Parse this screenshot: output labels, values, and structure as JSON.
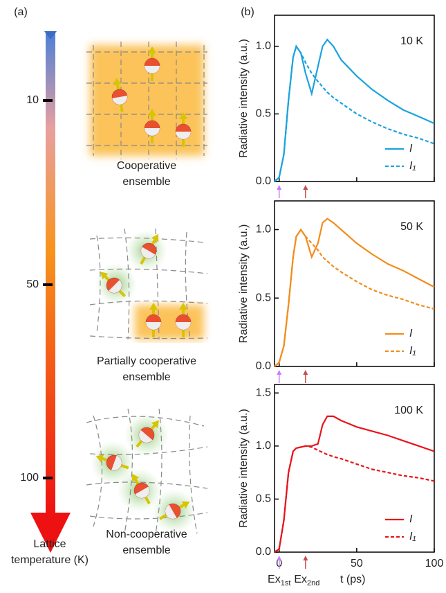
{
  "panel_a": {
    "label": "(a)",
    "ticks": [
      "10",
      "50",
      "100"
    ],
    "axis_label": [
      "Lattice",
      "temperature (K)"
    ],
    "captions": [
      [
        "Cooperative",
        "ensemble"
      ],
      [
        "Partially cooperative",
        "ensemble"
      ],
      [
        "Non-cooperative",
        "ensemble"
      ]
    ]
  },
  "panel_b_label": "(b)",
  "chart_data": [
    {
      "type": "line",
      "annotation": "10 K",
      "ylabel": "Radiative intensity (a.u.)",
      "x": [
        -3,
        0,
        3,
        6,
        9,
        11,
        14,
        17,
        21,
        25,
        28,
        31,
        35,
        40,
        50,
        60,
        70,
        80,
        90,
        100
      ],
      "series": [
        {
          "name": "I",
          "color": "#1aa3dd",
          "dash": false,
          "values": [
            0,
            0.03,
            0.2,
            0.6,
            0.92,
            1.0,
            0.95,
            0.8,
            0.65,
            0.85,
            1.0,
            1.05,
            1.0,
            0.9,
            0.78,
            0.68,
            0.6,
            0.53,
            0.48,
            0.43
          ]
        },
        {
          "name": "I₁",
          "color": "#1aa3dd",
          "dash": true,
          "values": [
            0,
            0.03,
            0.2,
            0.6,
            0.92,
            1.0,
            0.95,
            0.88,
            0.8,
            0.74,
            0.7,
            0.66,
            0.62,
            0.58,
            0.5,
            0.44,
            0.39,
            0.35,
            0.32,
            0.28
          ]
        }
      ],
      "xlim": [
        -3,
        100
      ],
      "xticks": [
        0,
        50,
        100
      ],
      "ylim": [
        0,
        1.23
      ],
      "yticks": [
        {
          "value": 0,
          "label": "0.0"
        },
        {
          "value": 0.5,
          "label": "0.5"
        },
        {
          "value": 1,
          "label": "1.0"
        }
      ],
      "excitations": [
        0,
        17
      ],
      "excitation_colors": [
        "#c77dff",
        "#c0504d"
      ]
    },
    {
      "type": "line",
      "annotation": "50 K",
      "ylabel": "Radiative intensity (a.u.)",
      "x": [
        -3,
        0,
        3,
        6,
        9,
        11,
        14,
        17,
        21,
        25,
        28,
        31,
        35,
        40,
        50,
        60,
        70,
        80,
        90,
        100
      ],
      "series": [
        {
          "name": "I",
          "color": "#f28c1c",
          "dash": false,
          "values": [
            0,
            0.03,
            0.15,
            0.45,
            0.8,
            0.95,
            1.0,
            0.95,
            0.8,
            0.9,
            1.05,
            1.08,
            1.05,
            1.0,
            0.9,
            0.82,
            0.75,
            0.7,
            0.64,
            0.58
          ]
        },
        {
          "name": "I₁",
          "color": "#f28c1c",
          "dash": true,
          "values": [
            0,
            0.03,
            0.15,
            0.45,
            0.8,
            0.95,
            1.0,
            0.95,
            0.9,
            0.85,
            0.8,
            0.77,
            0.73,
            0.69,
            0.62,
            0.56,
            0.52,
            0.49,
            0.45,
            0.42
          ]
        }
      ],
      "xlim": [
        -3,
        100
      ],
      "xticks": [
        0,
        50,
        100
      ],
      "ylim": [
        0,
        1.21
      ],
      "yticks": [
        {
          "value": 0,
          "label": "0.0"
        },
        {
          "value": 0.5,
          "label": "0.5"
        },
        {
          "value": 1,
          "label": "1.0"
        }
      ],
      "excitations": [
        0,
        17
      ],
      "excitation_colors": [
        "#c77dff",
        "#c0504d"
      ]
    },
    {
      "type": "line",
      "annotation": "100 K",
      "ylabel": "Radiative intensity (a.u.)",
      "xlabel": "t (ps)",
      "xticklabels": true,
      "excitation_labels": [
        {
          "text": "Ex",
          "sub": "1st"
        },
        {
          "text": "Ex",
          "sub": "2nd"
        }
      ],
      "x": [
        -3,
        0,
        3,
        6,
        9,
        11,
        14,
        17,
        21,
        25,
        28,
        31,
        35,
        40,
        50,
        60,
        70,
        80,
        90,
        100
      ],
      "series": [
        {
          "name": "I",
          "color": "#e8141c",
          "dash": false,
          "values": [
            0,
            0.03,
            0.3,
            0.75,
            0.95,
            0.98,
            0.99,
            1.0,
            1.0,
            1.02,
            1.2,
            1.28,
            1.28,
            1.24,
            1.18,
            1.14,
            1.1,
            1.05,
            1.0,
            0.95
          ]
        },
        {
          "name": "I₁",
          "color": "#e8141c",
          "dash": true,
          "values": [
            0,
            0.03,
            0.3,
            0.75,
            0.95,
            0.98,
            0.99,
            1.0,
            0.99,
            0.96,
            0.94,
            0.92,
            0.9,
            0.88,
            0.83,
            0.78,
            0.75,
            0.72,
            0.7,
            0.67
          ]
        }
      ],
      "xlim": [
        -3,
        100
      ],
      "xticks": [
        0,
        50,
        100
      ],
      "ylim": [
        0,
        1.58
      ],
      "yticks": [
        {
          "value": 0,
          "label": "0.0"
        },
        {
          "value": 0.5,
          "label": "0.5"
        },
        {
          "value": 1,
          "label": "1.0"
        },
        {
          "value": 1.5,
          "label": "1.5"
        }
      ],
      "excitations": [
        0,
        17
      ],
      "excitation_colors": [
        "#c77dff",
        "#c0504d"
      ]
    }
  ]
}
